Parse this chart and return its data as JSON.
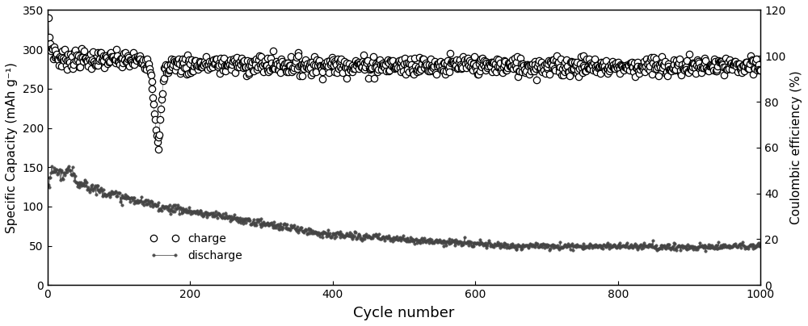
{
  "title": "",
  "xlabel": "Cycle number",
  "ylabel_left": "Specific Capacity (mAh g⁻¹)",
  "ylabel_right": "Coulombic efficiency (%)",
  "xlim": [
    0,
    1000
  ],
  "ylim_left": [
    0,
    350
  ],
  "ylim_right": [
    0,
    120
  ],
  "yticks_left": [
    0,
    50,
    100,
    150,
    200,
    250,
    300,
    350
  ],
  "yticks_right": [
    0,
    20,
    40,
    60,
    80,
    100,
    120
  ],
  "xticks": [
    0,
    200,
    400,
    600,
    800,
    1000
  ],
  "charge_color": "#000000",
  "discharge_color": "#444444",
  "legend_charge": "charge",
  "legend_discharge": "discharge",
  "n_cycles": 1000,
  "charge_stable": 285,
  "charge_start": 330,
  "charge_noise": 6,
  "discharge_start": 145,
  "discharge_end": 50
}
